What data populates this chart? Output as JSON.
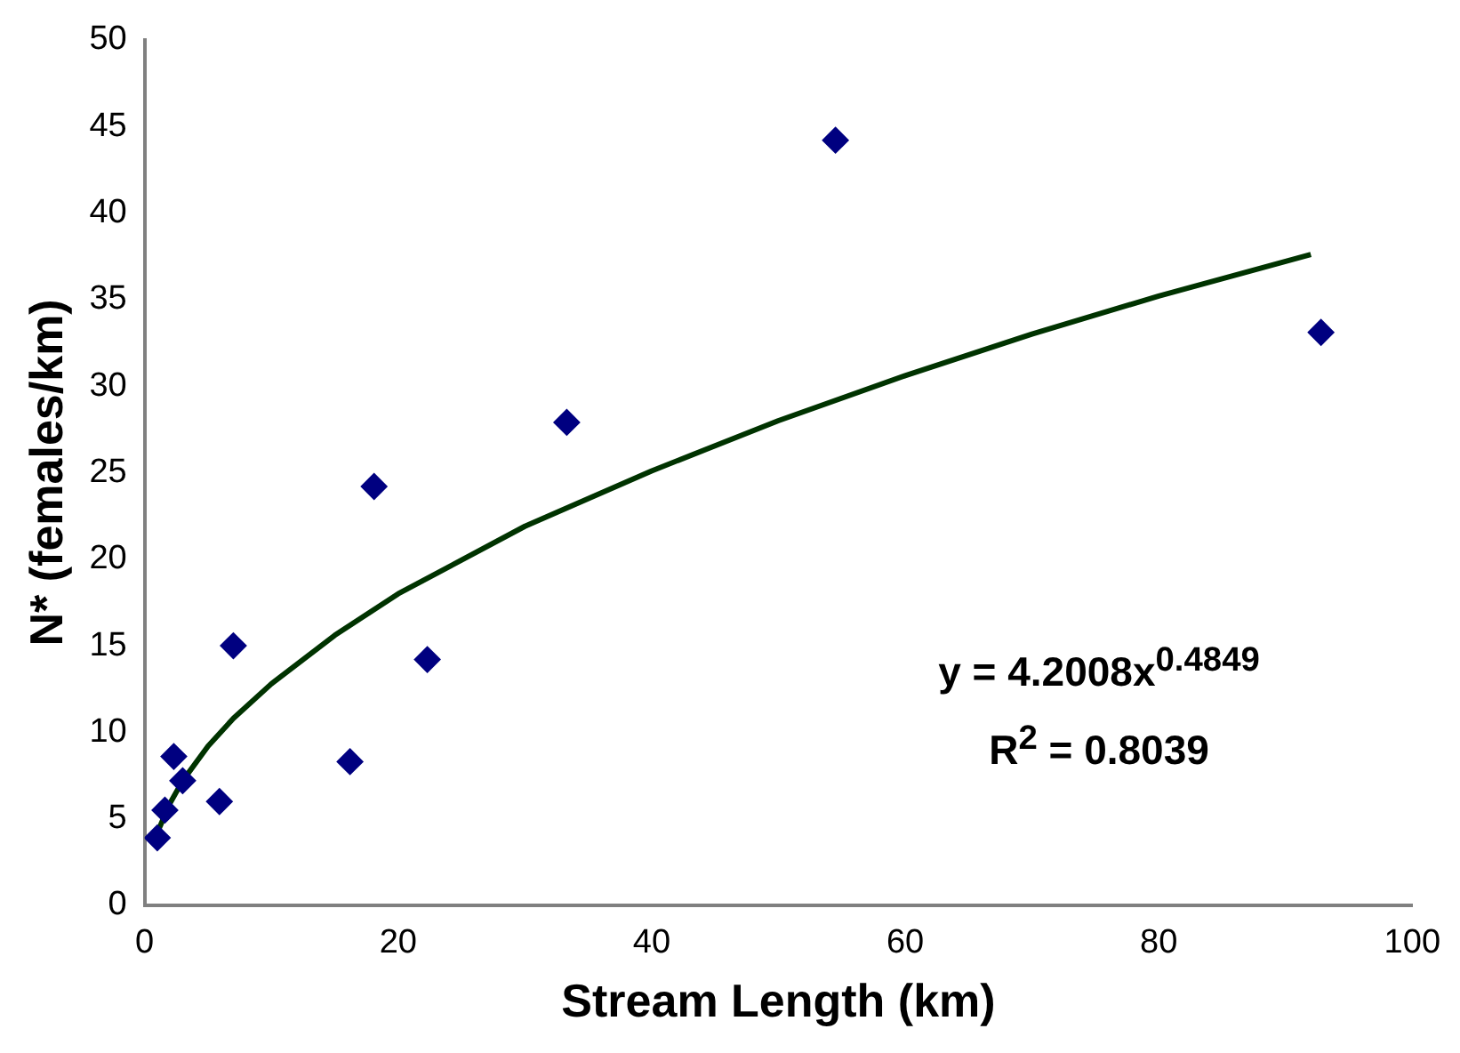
{
  "chart_data": {
    "type": "scatter",
    "xlabel": "Stream Length (km)",
    "ylabel": "N* (females/km)",
    "xlim": [
      0,
      100
    ],
    "xticks": [
      0,
      20,
      40,
      60,
      80,
      100
    ],
    "ylim": [
      0,
      50
    ],
    "yticks": [
      0,
      5,
      10,
      15,
      20,
      25,
      30,
      35,
      40,
      45,
      50
    ],
    "grid": false,
    "legend": false,
    "marker": "diamond",
    "series": [
      {
        "color": "#000080",
        "x": [
          1.0,
          1.6,
          2.3,
          3.0,
          5.9,
          7.0,
          16.2,
          18.1,
          22.3,
          33.3,
          54.5,
          92.8
        ],
        "values": [
          3.9,
          5.5,
          8.6,
          7.2,
          6.0,
          15.0,
          8.3,
          24.2,
          14.2,
          27.9,
          44.2,
          33.1
        ]
      },
      {
        "type": "line",
        "color": "#003300",
        "marker": "none",
        "line_style": "solid",
        "x": [
          1,
          2,
          3,
          5,
          7,
          10,
          15,
          20,
          30,
          40,
          50,
          60,
          70,
          80,
          92
        ],
        "values": [
          4.2,
          5.9,
          7.2,
          9.2,
          10.8,
          12.8,
          15.6,
          18.0,
          21.9,
          25.1,
          28.0,
          30.6,
          33.0,
          35.2,
          37.6
        ]
      }
    ],
    "annotations": [
      "y = 4.2008x$^{0.4849}$",
      "R$^{2}$ = 0.8039"
    ]
  }
}
